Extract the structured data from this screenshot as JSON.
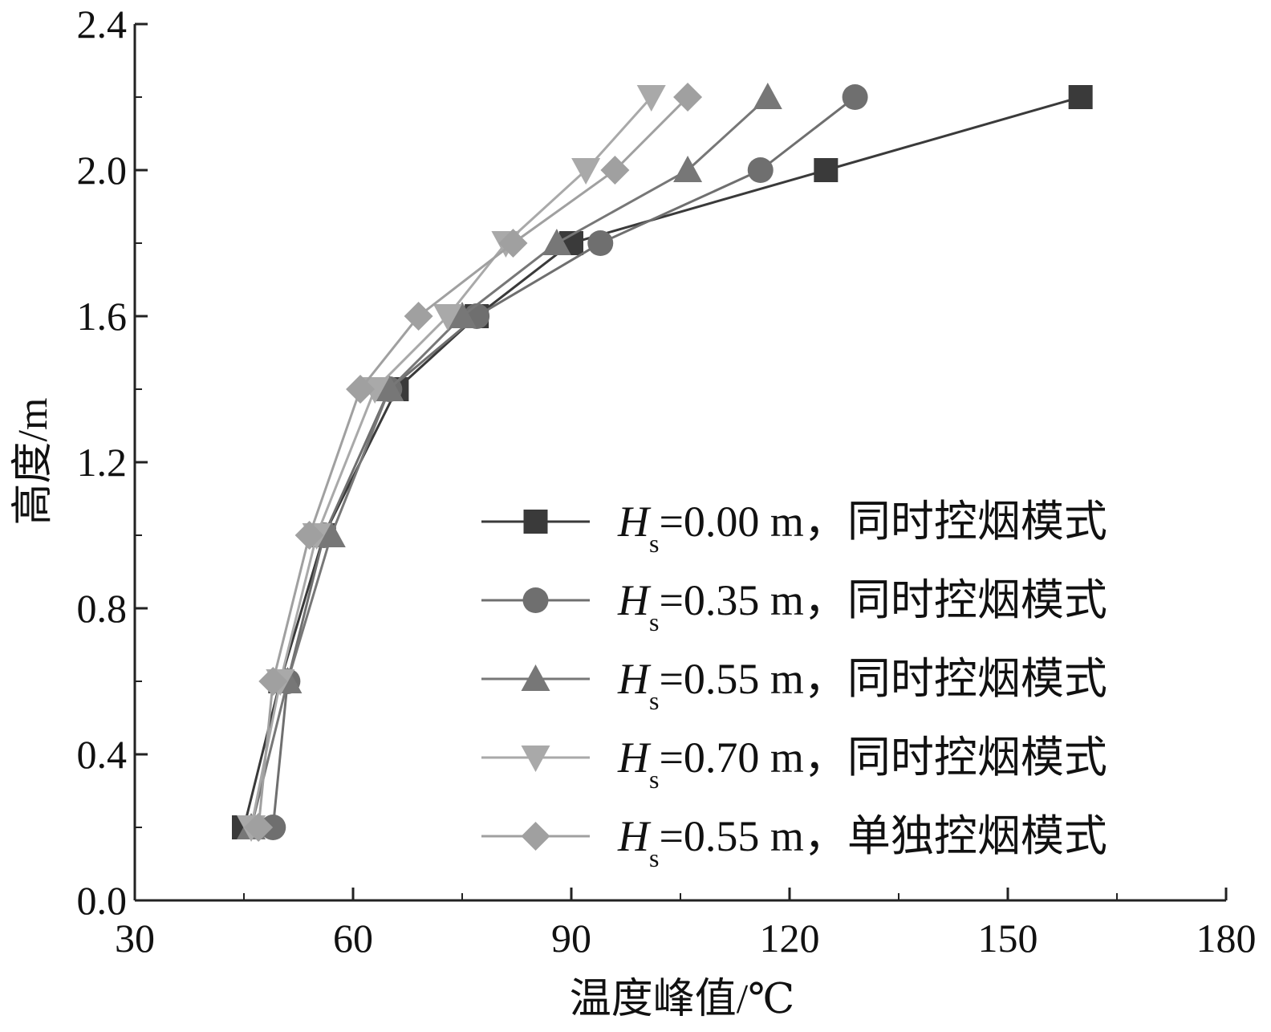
{
  "chart_data": {
    "type": "line",
    "title": "",
    "xlabel": "温度峰值/℃",
    "ylabel": "高度/m",
    "xlim": [
      30,
      180
    ],
    "ylim": [
      0.0,
      2.4
    ],
    "xticks": [
      "30",
      "60",
      "90",
      "120",
      "150",
      "180"
    ],
    "yticks": [
      "0.0",
      "0.4",
      "0.8",
      "1.2",
      "1.6",
      "2.0",
      "2.4"
    ],
    "grid": false,
    "legend_position": "bottom-right",
    "series": [
      {
        "legend_var": "H",
        "legend_sub": "s",
        "legend_rest": "=0.00 m，同时控烟模式",
        "marker": "square",
        "color": "#3a3a3a",
        "x": [
          45,
          50,
          56,
          66,
          77,
          90,
          125,
          160
        ],
        "y": [
          0.2,
          0.6,
          1.0,
          1.4,
          1.6,
          1.8,
          2.0,
          2.2
        ]
      },
      {
        "legend_var": "H",
        "legend_sub": "s",
        "legend_rest": "=0.35 m，同时控烟模式",
        "marker": "circle",
        "color": "#6f6f6f",
        "x": [
          49,
          51,
          56,
          65,
          77,
          94,
          116,
          129
        ],
        "y": [
          0.2,
          0.6,
          1.0,
          1.4,
          1.6,
          1.8,
          2.0,
          2.2
        ]
      },
      {
        "legend_var": "H",
        "legend_sub": "s",
        "legend_rest": "=0.55 m，同时控烟模式",
        "marker": "triangle-up",
        "color": "#777777",
        "x": [
          46,
          51,
          57,
          65,
          75,
          88,
          106,
          117
        ],
        "y": [
          0.2,
          0.6,
          1.0,
          1.4,
          1.6,
          1.8,
          2.0,
          2.2
        ]
      },
      {
        "legend_var": "H",
        "legend_sub": "s",
        "legend_rest": "=0.70 m，同时控烟模式",
        "marker": "triangle-down",
        "color": "#a9a9a9",
        "x": [
          46,
          50,
          55,
          63,
          73,
          81,
          92,
          101
        ],
        "y": [
          0.2,
          0.6,
          1.0,
          1.4,
          1.6,
          1.8,
          2.0,
          2.2
        ]
      },
      {
        "legend_var": "H",
        "legend_sub": "s",
        "legend_rest": "=0.55 m，单独控烟模式",
        "marker": "diamond",
        "color": "#a0a0a0",
        "x": [
          47,
          49,
          54,
          61,
          69,
          82,
          96,
          106
        ],
        "y": [
          0.2,
          0.6,
          1.0,
          1.4,
          1.6,
          1.8,
          2.0,
          2.2
        ]
      }
    ]
  }
}
